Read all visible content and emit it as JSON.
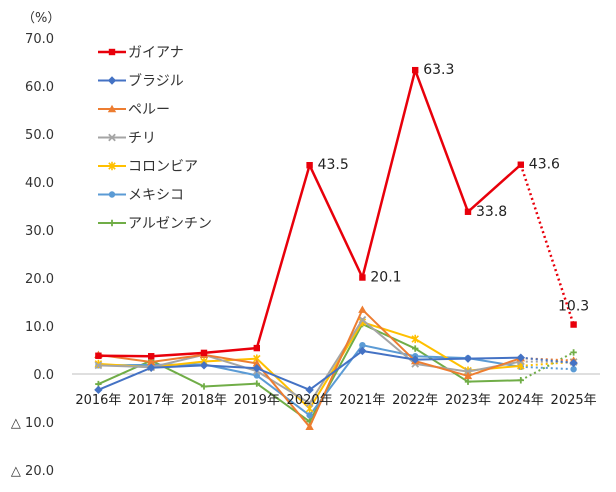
{
  "chart_data": {
    "type": "line",
    "unit_label": "（%）",
    "categories": [
      "2016年",
      "2017年",
      "2018年",
      "2019年",
      "2020年",
      "2021年",
      "2022年",
      "2023年",
      "2024年",
      "2025年"
    ],
    "y_ticks": [
      {
        "value": 70,
        "label": "70.0"
      },
      {
        "value": 60,
        "label": "60.0"
      },
      {
        "value": 50,
        "label": "50.0"
      },
      {
        "value": 40,
        "label": "40.0"
      },
      {
        "value": 30,
        "label": "30.0"
      },
      {
        "value": 20,
        "label": "20.0"
      },
      {
        "value": 10,
        "label": "10.0"
      },
      {
        "value": 0,
        "label": "0.0"
      },
      {
        "value": -10,
        "label": "△ 10.0"
      },
      {
        "value": -20,
        "label": "△ 20.0"
      }
    ],
    "ylim": [
      -20,
      70
    ],
    "grid": false,
    "legend_position": "top-left",
    "forecast_from_index": 8,
    "series": [
      {
        "name": "ガイアナ",
        "color": "#e8000b",
        "marker": "square",
        "width": 2.5,
        "values": [
          3.8,
          3.7,
          4.4,
          5.4,
          43.5,
          20.1,
          63.3,
          33.8,
          43.6,
          10.3
        ],
        "labels": [
          null,
          null,
          null,
          null,
          "43.5",
          "20.1",
          "63.3",
          "33.8",
          "43.6",
          "10.3"
        ]
      },
      {
        "name": "ブラジル",
        "color": "#4472c4",
        "marker": "diamond",
        "width": 2,
        "values": [
          -3.3,
          1.3,
          1.8,
          1.2,
          -3.3,
          4.8,
          3.0,
          3.2,
          3.4,
          2.3
        ]
      },
      {
        "name": "ペルー",
        "color": "#ed7d31",
        "marker": "triangle",
        "width": 2,
        "values": [
          4.0,
          2.5,
          4.0,
          2.2,
          -11.0,
          13.4,
          2.7,
          -0.4,
          3.3,
          2.8
        ]
      },
      {
        "name": "チリ",
        "color": "#a5a5a5",
        "marker": "x",
        "width": 2,
        "values": [
          1.8,
          1.4,
          4.0,
          0.6,
          -6.1,
          11.3,
          2.1,
          0.5,
          2.6,
          2.5
        ]
      },
      {
        "name": "コロンビア",
        "color": "#ffc000",
        "marker": "star",
        "width": 2,
        "values": [
          2.1,
          1.4,
          2.6,
          3.2,
          -7.2,
          10.8,
          7.3,
          0.7,
          1.7,
          2.5
        ]
      },
      {
        "name": "メキシコ",
        "color": "#5b9bd5",
        "marker": "circle",
        "width": 2,
        "values": [
          1.8,
          1.9,
          2.0,
          -0.3,
          -8.6,
          6.0,
          3.7,
          3.3,
          1.5,
          1.0
        ]
      },
      {
        "name": "アルゼンチン",
        "color": "#70ad47",
        "marker": "plus",
        "width": 2,
        "values": [
          -2.1,
          2.8,
          -2.6,
          -2.0,
          -9.9,
          10.4,
          5.3,
          -1.6,
          -1.3,
          4.5
        ]
      }
    ]
  }
}
